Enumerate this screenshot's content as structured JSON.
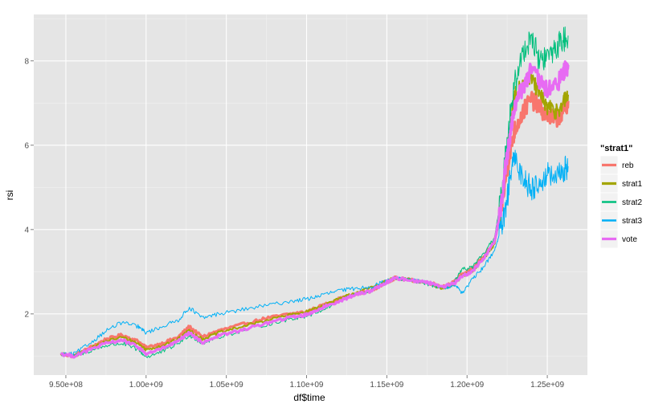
{
  "chart_data": {
    "type": "line",
    "xlabel": "df$time",
    "ylabel": "rsi",
    "xlim": [
      930000000,
      1275000000
    ],
    "ylim": [
      0.55,
      9.1
    ],
    "x_ticks": [
      {
        "value": 950000000,
        "label": "9.50e+08"
      },
      {
        "value": 1000000000,
        "label": "1.00e+09"
      },
      {
        "value": 1050000000,
        "label": "1.05e+09"
      },
      {
        "value": 1100000000,
        "label": "1.10e+09"
      },
      {
        "value": 1150000000,
        "label": "1.15e+09"
      },
      {
        "value": 1200000000,
        "label": "1.20e+09"
      },
      {
        "value": 1250000000,
        "label": "1.25e+09"
      }
    ],
    "y_ticks": [
      {
        "value": 2,
        "label": "2"
      },
      {
        "value": 4,
        "label": "4"
      },
      {
        "value": 6,
        "label": "6"
      },
      {
        "value": 8,
        "label": "8"
      }
    ],
    "grid": true,
    "legend": {
      "title": "\"strat1\"",
      "position": "right"
    },
    "series": [
      {
        "name": "reb",
        "color": "#F8766D",
        "width": 3.2,
        "x": [
          947000000,
          955000000,
          965000000,
          975000000,
          985000000,
          995000000,
          1000000000,
          1010000000,
          1020000000,
          1027000000,
          1035000000,
          1045000000,
          1060000000,
          1075000000,
          1090000000,
          1100000000,
          1110000000,
          1120000000,
          1130000000,
          1140000000,
          1150000000,
          1155000000,
          1165000000,
          1175000000,
          1185000000,
          1192000000,
          1197000000,
          1203000000,
          1210000000,
          1217000000,
          1221000000,
          1224000000,
          1227000000,
          1230000000,
          1235000000,
          1240000000,
          1245000000,
          1250000000,
          1255000000,
          1260000000,
          1263000000
        ],
        "y": [
          1.05,
          1.0,
          1.2,
          1.4,
          1.5,
          1.35,
          1.2,
          1.3,
          1.45,
          1.7,
          1.45,
          1.6,
          1.75,
          1.9,
          2.0,
          2.05,
          2.2,
          2.35,
          2.45,
          2.55,
          2.75,
          2.85,
          2.8,
          2.75,
          2.65,
          2.75,
          2.95,
          3.05,
          3.35,
          3.7,
          4.4,
          5.2,
          5.9,
          6.4,
          6.8,
          7.1,
          6.9,
          6.7,
          6.6,
          6.8,
          7.05
        ]
      },
      {
        "name": "strat1",
        "color": "#A3A500",
        "width": 2.0,
        "x": [
          947000000,
          955000000,
          965000000,
          975000000,
          985000000,
          995000000,
          1000000000,
          1010000000,
          1020000000,
          1027000000,
          1035000000,
          1045000000,
          1060000000,
          1075000000,
          1090000000,
          1100000000,
          1110000000,
          1120000000,
          1130000000,
          1140000000,
          1150000000,
          1155000000,
          1165000000,
          1175000000,
          1185000000,
          1192000000,
          1197000000,
          1203000000,
          1210000000,
          1217000000,
          1221000000,
          1224000000,
          1227000000,
          1230000000,
          1235000000,
          1240000000,
          1245000000,
          1250000000,
          1255000000,
          1260000000,
          1263000000
        ],
        "y": [
          1.05,
          1.0,
          1.18,
          1.35,
          1.45,
          1.3,
          1.15,
          1.25,
          1.4,
          1.62,
          1.4,
          1.55,
          1.7,
          1.85,
          1.98,
          2.05,
          2.2,
          2.35,
          2.5,
          2.62,
          2.78,
          2.85,
          2.8,
          2.75,
          2.6,
          2.7,
          2.9,
          3.0,
          3.3,
          3.65,
          4.5,
          5.5,
          6.5,
          7.2,
          7.5,
          7.6,
          7.2,
          6.9,
          6.8,
          7.0,
          7.2
        ]
      },
      {
        "name": "strat2",
        "color": "#00BF7D",
        "width": 1.0,
        "x": [
          947000000,
          955000000,
          965000000,
          975000000,
          985000000,
          995000000,
          1000000000,
          1010000000,
          1020000000,
          1027000000,
          1035000000,
          1045000000,
          1060000000,
          1075000000,
          1090000000,
          1100000000,
          1110000000,
          1120000000,
          1130000000,
          1140000000,
          1150000000,
          1155000000,
          1165000000,
          1175000000,
          1185000000,
          1192000000,
          1197000000,
          1203000000,
          1210000000,
          1217000000,
          1221000000,
          1224000000,
          1227000000,
          1230000000,
          1235000000,
          1240000000,
          1245000000,
          1250000000,
          1255000000,
          1260000000,
          1263000000
        ],
        "y": [
          1.05,
          1.0,
          1.12,
          1.25,
          1.3,
          1.15,
          0.98,
          1.1,
          1.3,
          1.5,
          1.3,
          1.45,
          1.6,
          1.75,
          1.88,
          1.95,
          2.1,
          2.3,
          2.45,
          2.55,
          2.75,
          2.85,
          2.8,
          2.72,
          2.6,
          2.75,
          3.05,
          3.1,
          3.4,
          3.8,
          4.7,
          5.8,
          6.8,
          7.5,
          8.2,
          8.6,
          8.0,
          8.1,
          8.3,
          8.5,
          8.6
        ]
      },
      {
        "name": "strat3",
        "color": "#00B0F6",
        "width": 1.0,
        "x": [
          947000000,
          955000000,
          965000000,
          975000000,
          985000000,
          995000000,
          1000000000,
          1010000000,
          1020000000,
          1027000000,
          1035000000,
          1045000000,
          1060000000,
          1075000000,
          1090000000,
          1100000000,
          1110000000,
          1120000000,
          1130000000,
          1140000000,
          1150000000,
          1155000000,
          1165000000,
          1175000000,
          1185000000,
          1192000000,
          1197000000,
          1203000000,
          1210000000,
          1217000000,
          1221000000,
          1224000000,
          1227000000,
          1230000000,
          1235000000,
          1240000000,
          1245000000,
          1250000000,
          1255000000,
          1260000000,
          1263000000
        ],
        "y": [
          1.05,
          1.05,
          1.3,
          1.6,
          1.8,
          1.7,
          1.55,
          1.7,
          1.85,
          2.15,
          1.9,
          2.0,
          2.1,
          2.2,
          2.3,
          2.35,
          2.45,
          2.55,
          2.6,
          2.65,
          2.78,
          2.85,
          2.8,
          2.75,
          2.6,
          2.7,
          2.5,
          2.8,
          3.1,
          3.5,
          4.0,
          4.4,
          5.3,
          5.7,
          5.2,
          5.0,
          5.1,
          5.3,
          5.2,
          5.4,
          5.5
        ]
      },
      {
        "name": "vote",
        "color": "#E76BF3",
        "width": 3.2,
        "x": [
          947000000,
          955000000,
          965000000,
          975000000,
          985000000,
          995000000,
          1000000000,
          1010000000,
          1020000000,
          1027000000,
          1035000000,
          1045000000,
          1060000000,
          1075000000,
          1090000000,
          1100000000,
          1110000000,
          1120000000,
          1130000000,
          1140000000,
          1150000000,
          1155000000,
          1165000000,
          1175000000,
          1185000000,
          1192000000,
          1197000000,
          1203000000,
          1210000000,
          1217000000,
          1221000000,
          1224000000,
          1227000000,
          1230000000,
          1235000000,
          1240000000,
          1245000000,
          1250000000,
          1255000000,
          1260000000,
          1263000000
        ],
        "y": [
          1.05,
          1.0,
          1.15,
          1.3,
          1.38,
          1.22,
          1.05,
          1.18,
          1.35,
          1.55,
          1.32,
          1.48,
          1.62,
          1.78,
          1.92,
          1.98,
          2.15,
          2.3,
          2.45,
          2.55,
          2.75,
          2.85,
          2.8,
          2.75,
          2.65,
          2.72,
          2.9,
          3.0,
          3.3,
          3.7,
          4.5,
          5.5,
          6.3,
          7.0,
          7.4,
          7.8,
          7.5,
          7.3,
          7.4,
          7.7,
          7.9
        ]
      }
    ]
  }
}
